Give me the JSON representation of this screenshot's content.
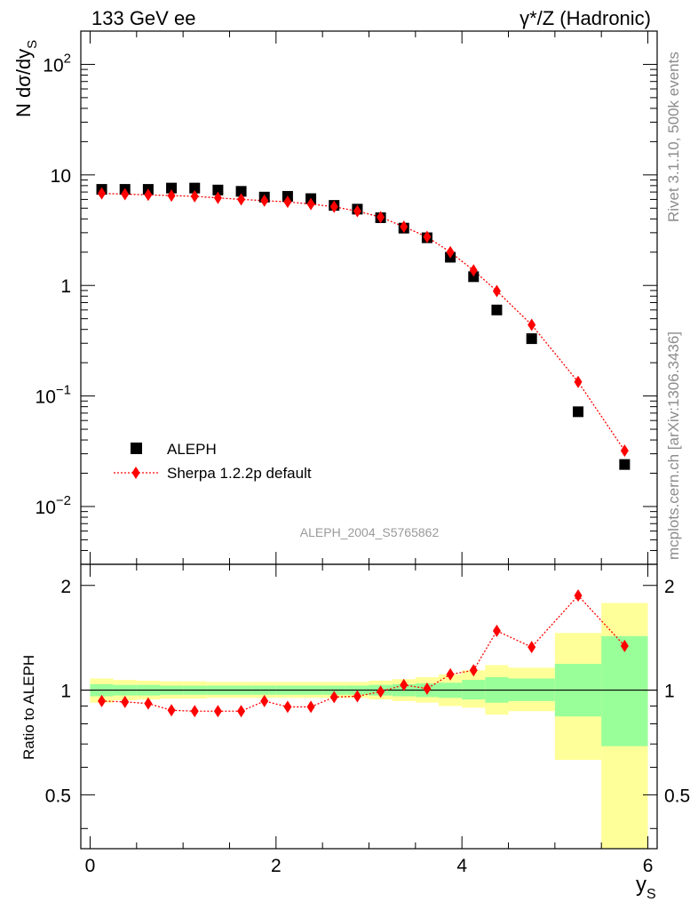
{
  "header": {
    "energy_label": "133 GeV ee",
    "process_label": "γ*/Z (Hadronic)"
  },
  "side_labels": {
    "rivet": "Rivet 3.1.10,  500k events",
    "mcplots": "mcplots.cern.ch [arXiv:1306.3436]"
  },
  "analysis_id": "ALEPH_2004_S5765862",
  "colors": {
    "data": "#000000",
    "mc": "#ff0000",
    "band_inner": "#99ff99",
    "band_outer": "#ffff99"
  },
  "chart_data": [
    {
      "type": "scatter",
      "panel": "main",
      "ylabel": "N dσ/dy_S",
      "yscale": "log",
      "ylim": [
        0.003,
        200
      ],
      "xlim": [
        -0.1,
        6.1
      ],
      "y_tick_labels": [
        "10^-2",
        "10^-1",
        "1",
        "10",
        "10^2"
      ],
      "legend": [
        "ALEPH",
        "Sherpa 1.2.2p default"
      ],
      "legend_position": "lower-left",
      "series": [
        {
          "name": "ALEPH",
          "marker": "square",
          "x": [
            0.125,
            0.375,
            0.625,
            0.875,
            1.125,
            1.375,
            1.625,
            1.875,
            2.125,
            2.375,
            2.625,
            2.875,
            3.125,
            3.375,
            3.625,
            3.875,
            4.125,
            4.375,
            4.75,
            5.25,
            5.75
          ],
          "values": [
            7.4,
            7.4,
            7.4,
            7.6,
            7.6,
            7.3,
            7.1,
            6.3,
            6.4,
            6.1,
            5.3,
            4.9,
            4.1,
            3.3,
            2.7,
            1.8,
            1.2,
            0.6,
            0.33,
            0.072,
            0.024
          ]
        },
        {
          "name": "Sherpa 1.2.2p default",
          "marker": "diamond",
          "line": "dotted",
          "x": [
            0.125,
            0.375,
            0.625,
            0.875,
            1.125,
            1.375,
            1.625,
            1.875,
            2.125,
            2.375,
            2.625,
            2.875,
            3.125,
            3.375,
            3.625,
            3.875,
            4.125,
            4.375,
            4.75,
            5.25,
            5.75
          ],
          "values": [
            6.8,
            6.7,
            6.6,
            6.5,
            6.4,
            6.2,
            6.0,
            5.85,
            5.7,
            5.45,
            5.15,
            4.7,
            4.15,
            3.4,
            2.75,
            2.0,
            1.37,
            0.89,
            0.44,
            0.134,
            0.032
          ]
        }
      ]
    },
    {
      "type": "scatter",
      "panel": "ratio",
      "xlabel": "y_S",
      "ylabel": "Ratio to ALEPH",
      "ylim": [
        0.35,
        2.3
      ],
      "xlim": [
        -0.1,
        6.1
      ],
      "x_tick_labels": [
        "0",
        "2",
        "4",
        "6"
      ],
      "y_tick_labels": [
        "0.5",
        "1",
        "2"
      ],
      "reference_line": 1,
      "bands": {
        "x_edges": [
          0.0,
          0.25,
          0.5,
          0.75,
          1.0,
          1.25,
          1.5,
          1.75,
          2.0,
          2.25,
          2.5,
          2.75,
          3.0,
          3.25,
          3.5,
          3.75,
          4.0,
          4.25,
          4.5,
          5.0,
          5.5,
          6.0
        ],
        "inner_lo": [
          0.96,
          0.965,
          0.965,
          0.97,
          0.97,
          0.97,
          0.97,
          0.97,
          0.97,
          0.97,
          0.97,
          0.97,
          0.965,
          0.96,
          0.955,
          0.95,
          0.94,
          0.92,
          0.93,
          0.84,
          0.69
        ],
        "inner_hi": [
          1.04,
          1.035,
          1.035,
          1.03,
          1.03,
          1.03,
          1.03,
          1.03,
          1.03,
          1.03,
          1.03,
          1.03,
          1.035,
          1.04,
          1.045,
          1.05,
          1.07,
          1.09,
          1.08,
          1.19,
          1.43
        ],
        "outer_lo": [
          0.92,
          0.935,
          0.94,
          0.945,
          0.945,
          0.95,
          0.95,
          0.95,
          0.95,
          0.95,
          0.95,
          0.95,
          0.94,
          0.93,
          0.92,
          0.9,
          0.89,
          0.85,
          0.87,
          0.63,
          0.3
        ],
        "outer_hi": [
          1.08,
          1.07,
          1.065,
          1.06,
          1.06,
          1.055,
          1.055,
          1.055,
          1.055,
          1.055,
          1.055,
          1.055,
          1.065,
          1.075,
          1.09,
          1.11,
          1.14,
          1.18,
          1.16,
          1.46,
          1.78
        ]
      },
      "series": [
        {
          "name": "Sherpa 1.2.2p default / ALEPH",
          "marker": "diamond",
          "line": "dotted",
          "x": [
            0.125,
            0.375,
            0.625,
            0.875,
            1.125,
            1.375,
            1.625,
            1.875,
            2.125,
            2.375,
            2.625,
            2.875,
            3.125,
            3.375,
            3.625,
            3.875,
            4.125,
            4.375,
            4.75,
            5.25,
            5.75
          ],
          "values": [
            0.93,
            0.925,
            0.915,
            0.875,
            0.87,
            0.87,
            0.87,
            0.93,
            0.895,
            0.895,
            0.955,
            0.96,
            0.99,
            1.035,
            1.01,
            1.11,
            1.14,
            1.48,
            1.33,
            1.87,
            1.34
          ]
        }
      ]
    }
  ]
}
